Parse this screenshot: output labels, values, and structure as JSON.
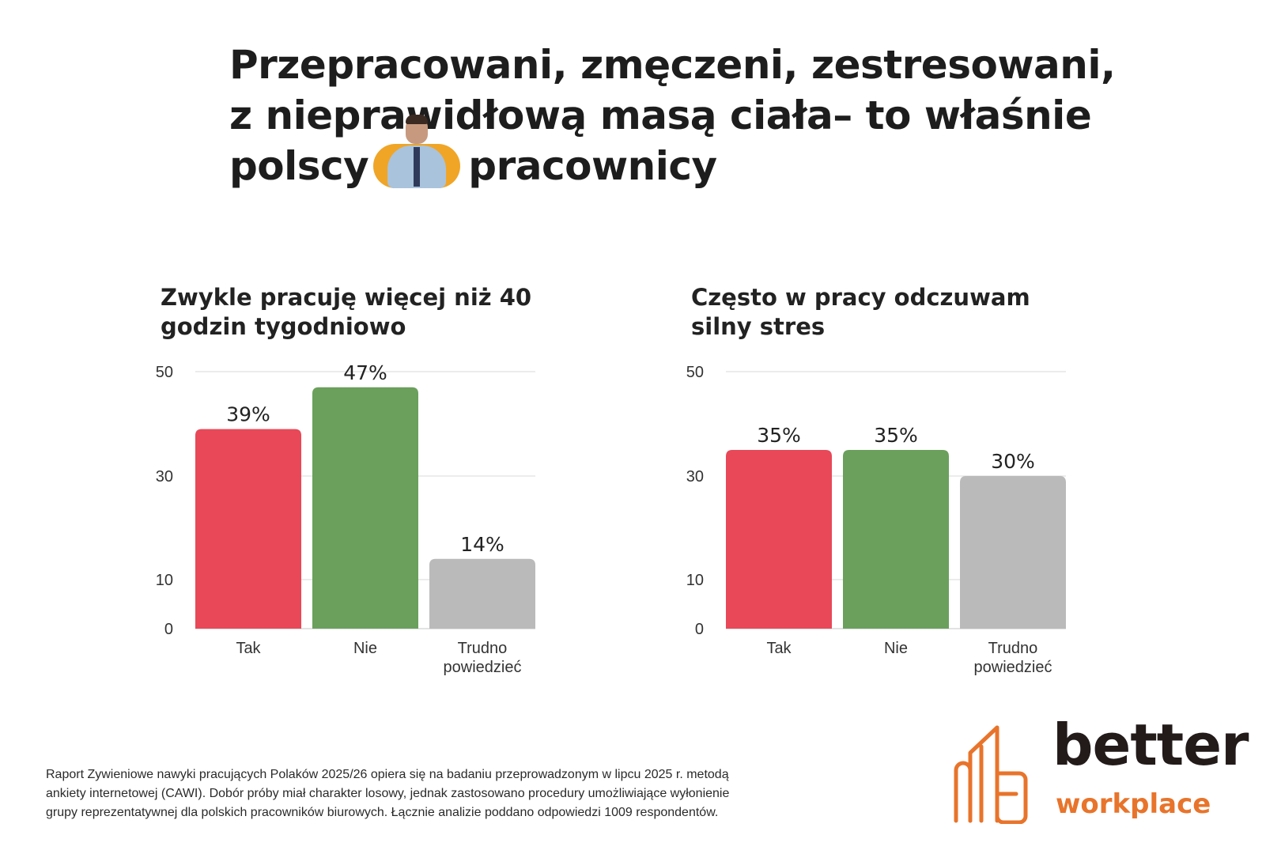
{
  "headline": {
    "line1": "Przepracowani, zmęczeni, zestresowani,",
    "line2": "z nieprawidłową masą ciała– to właśnie",
    "line3_before": "polscy",
    "line3_after": "pracownicy"
  },
  "colors": {
    "tak": "#e84857",
    "nie": "#6aa05c",
    "trudno": "#b9bab9",
    "grid": "#d9d9d9",
    "logo_orange": "#e8742b",
    "logo_dark": "#231a1a",
    "avatar_bg": "#f0a526"
  },
  "chart_data": [
    {
      "type": "bar",
      "title": "Zwykle pracuję więcej niż 40 godzin tygodniowo",
      "title_lines": [
        "Zwykle pracuję więcej niż 40",
        "godzin tygodniowo"
      ],
      "categories": [
        "Tak",
        "Nie",
        "Trudno powiedzieć"
      ],
      "category_lines": [
        [
          "Tak"
        ],
        [
          "Nie"
        ],
        [
          "Trudno",
          "powiedzieć"
        ]
      ],
      "values": [
        39,
        47,
        14
      ],
      "labels": [
        "39%",
        "47%",
        "14%"
      ],
      "yticks": [
        0,
        10,
        30,
        50
      ],
      "ylim": [
        0,
        50
      ],
      "grid": true
    },
    {
      "type": "bar",
      "title": "Często w pracy odczuwam silny stres",
      "title_lines": [
        "Często w pracy odczuwam",
        "silny stres"
      ],
      "categories": [
        "Tak",
        "Nie",
        "Trudno powiedzieć"
      ],
      "category_lines": [
        [
          "Tak"
        ],
        [
          "Nie"
        ],
        [
          "Trudno",
          "powiedzieć"
        ]
      ],
      "values": [
        35,
        35,
        30
      ],
      "labels": [
        "35%",
        "35%",
        "30%"
      ],
      "yticks": [
        0,
        10,
        30,
        50
      ],
      "ylim": [
        0,
        50
      ],
      "grid": true
    }
  ],
  "footnote": {
    "line1": "Raport Zywieniowe nawyki pracujących Polaków 2025/26 opiera się na badaniu przeprowadzonym w lipcu 2025 r. metodą",
    "line2": "ankiety internetowej (CAWI). Dobór próby miał charakter losowy, jednak zastosowano procedury umożliwiające wyłonienie",
    "line3": "grupy reprezentatywnej dla polskich pracowników biurowych. Łącznie analizie poddano odpowiedzi 1009 respondentów."
  },
  "logo": {
    "word1": "better",
    "word2": "workplace"
  }
}
